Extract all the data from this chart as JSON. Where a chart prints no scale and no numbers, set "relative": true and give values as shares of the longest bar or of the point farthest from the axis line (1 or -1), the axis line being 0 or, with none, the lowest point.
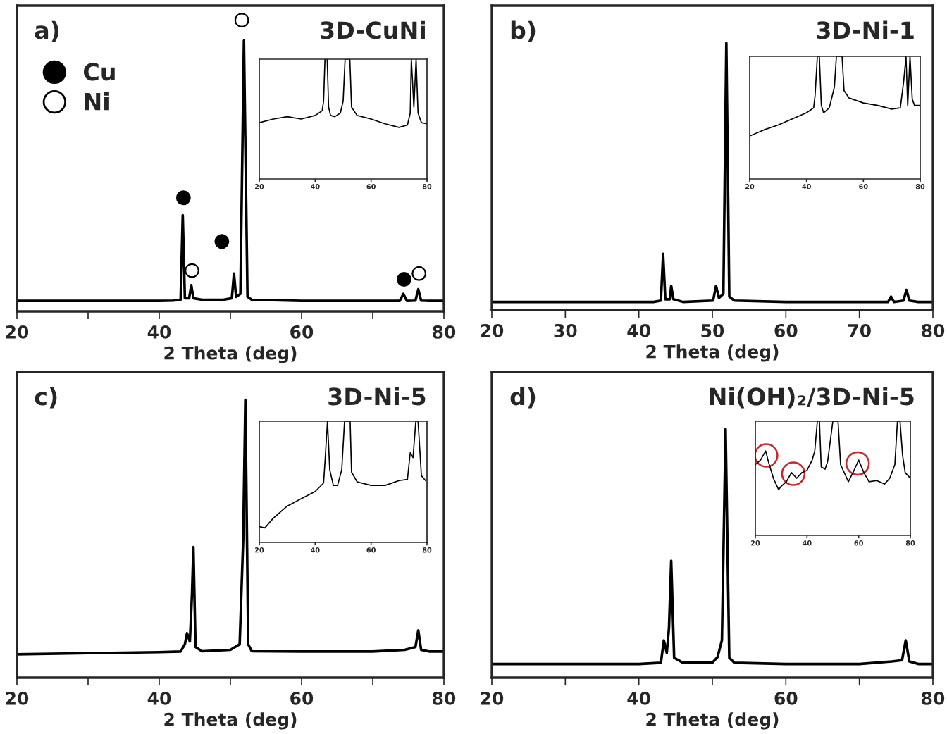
{
  "chart_data": [
    {
      "type": "line",
      "title": "a)",
      "subtitle": "3D-CuNi",
      "xlabel": "2 Theta (deg)",
      "relative": true,
      "tick_labels": "x",
      "legend": "top left",
      "xlim": [
        20,
        80
      ],
      "xticks": [
        20,
        {
          "value": 30,
          "label": null
        },
        40,
        {
          "value": 50,
          "label": null
        },
        60,
        {
          "value": 70,
          "label": null
        },
        80
      ],
      "series": [
        {
          "type": "line",
          "color": "#000000",
          "x": [
            20,
            25,
            30,
            35,
            40,
            42,
            43.0,
            43.3,
            43.6,
            44.2,
            44.5,
            44.8,
            46,
            49,
            50.2,
            50.5,
            50.8,
            51.4,
            51.9,
            52.4,
            53,
            60,
            70,
            73.8,
            74.3,
            74.8,
            76.0,
            76.4,
            76.8,
            78,
            80
          ],
          "values": [
            0.036,
            0.036,
            0.036,
            0.036,
            0.036,
            0.037,
            0.04,
            0.33,
            0.045,
            0.045,
            0.09,
            0.045,
            0.04,
            0.04,
            0.045,
            0.13,
            0.05,
            0.06,
            0.93,
            0.05,
            0.04,
            0.036,
            0.036,
            0.036,
            0.06,
            0.036,
            0.037,
            0.076,
            0.037,
            0.036,
            0.036
          ]
        },
        {
          "type": "scatter",
          "name": "Cu",
          "color": "#000000",
          "marker": "circle",
          "x": [
            43.4,
            48.8,
            74.4
          ],
          "values": [
            0.39,
            0.24,
            0.11
          ]
        },
        {
          "type": "scatter",
          "name": "Ni",
          "color": "#ffffff",
          "marker": "circle",
          "x": [
            44.6,
            51.6,
            76.5
          ],
          "values": [
            0.14,
            1,
            0.13
          ]
        }
      ]
    },
    {
      "type": "line",
      "relative": true,
      "tick_labels": "x",
      "xlim": [
        20,
        80
      ],
      "xticks": [
        20,
        40,
        60,
        80
      ],
      "series": [
        {
          "type": "line",
          "color": "#000000",
          "x": [
            20,
            25,
            30,
            35,
            40,
            42.5,
            43,
            43.5,
            44.3,
            44.8,
            45.5,
            47,
            49,
            50,
            50.7,
            51.8,
            52.4,
            53,
            55,
            60,
            65,
            70,
            73,
            74,
            74.4,
            75.3,
            76.1,
            76.8,
            78,
            80
          ],
          "values": [
            0.47,
            0.5,
            0.52,
            0.5,
            0.53,
            0.57,
            0.65,
            1,
            1,
            0.6,
            0.53,
            0.52,
            0.55,
            0.65,
            1,
            1,
            1,
            0.6,
            0.53,
            0.5,
            0.46,
            0.43,
            0.45,
            0.55,
            1,
            0.6,
            1,
            0.55,
            0.47,
            0.46
          ]
        }
      ]
    },
    {
      "type": "line",
      "title": "b)",
      "subtitle": "3D-Ni-1",
      "xlabel": "2 Theta (deg)",
      "relative": true,
      "tick_labels": "x",
      "xlim": [
        20,
        80
      ],
      "xticks": [
        20,
        30,
        40,
        50,
        60,
        70,
        80
      ],
      "series": [
        {
          "type": "line",
          "color": "#000000",
          "x": [
            20,
            30,
            40,
            42,
            43.0,
            43.3,
            43.6,
            44.2,
            44.4,
            44.7,
            46,
            50.1,
            50.5,
            50.9,
            51.5,
            51.9,
            52.3,
            53,
            60,
            70,
            73.9,
            74.3,
            74.7,
            76.0,
            76.4,
            76.8,
            78,
            80
          ],
          "values": [
            0.03,
            0.03,
            0.03,
            0.03,
            0.035,
            0.21,
            0.04,
            0.04,
            0.09,
            0.04,
            0.03,
            0.035,
            0.09,
            0.045,
            0.06,
            1,
            0.05,
            0.035,
            0.03,
            0.03,
            0.03,
            0.05,
            0.03,
            0.035,
            0.075,
            0.035,
            0.03,
            0.03
          ]
        }
      ]
    },
    {
      "type": "line",
      "relative": true,
      "tick_labels": "x",
      "xlim": [
        20,
        80
      ],
      "xticks": [
        20,
        40,
        60,
        80
      ],
      "series": [
        {
          "type": "line",
          "color": "#000000",
          "x": [
            20,
            25,
            30,
            35,
            40,
            42.5,
            43,
            43.8,
            44.5,
            45.2,
            46,
            48,
            49.8,
            50.5,
            51.2,
            52.5,
            53.2,
            55,
            60,
            65,
            70,
            73,
            74.2,
            75,
            75.6,
            76.4,
            77.2,
            78,
            80
          ],
          "values": [
            0.35,
            0.4,
            0.44,
            0.49,
            0.54,
            0.58,
            0.68,
            1,
            1,
            0.6,
            0.54,
            0.58,
            0.75,
            1,
            1,
            1,
            0.72,
            0.66,
            0.62,
            0.6,
            0.57,
            0.58,
            0.8,
            1,
            0.6,
            1,
            0.65,
            0.6,
            0.6
          ]
        }
      ]
    },
    {
      "type": "line",
      "title": "c)",
      "subtitle": "3D-Ni-5",
      "xlabel": "2 Theta (deg)",
      "relative": true,
      "tick_labels": "x",
      "xlim": [
        20,
        80
      ],
      "xticks": [
        20,
        {
          "value": 30,
          "label": null
        },
        40,
        {
          "value": 50,
          "label": null
        },
        60,
        {
          "value": 70,
          "label": null
        },
        80
      ],
      "series": [
        {
          "type": "line",
          "color": "#000000",
          "x": [
            20,
            30,
            40,
            43,
            43.6,
            43.9,
            44.3,
            44.6,
            44.8,
            45.1,
            46,
            50,
            51.3,
            51.8,
            52.1,
            52.5,
            53,
            60,
            70,
            74.5,
            76.0,
            76.4,
            76.8,
            78,
            80
          ],
          "values": [
            0.084,
            0.088,
            0.092,
            0.094,
            0.12,
            0.16,
            0.13,
            0.3,
            0.47,
            0.11,
            0.095,
            0.1,
            0.12,
            0.5,
            1,
            0.12,
            0.095,
            0.094,
            0.094,
            0.1,
            0.11,
            0.17,
            0.1,
            0.094,
            0.094
          ]
        }
      ]
    },
    {
      "type": "line",
      "relative": true,
      "tick_labels": "x",
      "xlim": [
        20,
        80
      ],
      "xticks": [
        20,
        40,
        60,
        80
      ],
      "series": [
        {
          "type": "line",
          "color": "#000000",
          "x": [
            20,
            22,
            25,
            30,
            35,
            40,
            43,
            43.6,
            44.4,
            45.2,
            46.5,
            48,
            49.5,
            50.5,
            51.5,
            52.5,
            53,
            55,
            60,
            65,
            70,
            73,
            74,
            75,
            76,
            76.8,
            78,
            79.5
          ],
          "values": [
            0.13,
            0.12,
            0.2,
            0.3,
            0.36,
            0.42,
            0.49,
            0.7,
            1,
            0.6,
            0.47,
            0.47,
            0.6,
            1,
            1,
            1,
            0.58,
            0.5,
            0.47,
            0.47,
            0.51,
            0.52,
            0.74,
            0.7,
            1,
            1,
            0.55,
            0.51
          ]
        }
      ]
    },
    {
      "type": "line",
      "title": "d)",
      "subtitle": "Ni(OH)₂/3D-Ni-5",
      "xlabel": "2 Theta (deg)",
      "relative": true,
      "tick_labels": "x",
      "xlim": [
        20,
        80
      ],
      "xticks": [
        20,
        {
          "value": 30,
          "label": null
        },
        40,
        {
          "value": 50,
          "label": null
        },
        60,
        {
          "value": 70,
          "label": null
        },
        80
      ],
      "series": [
        {
          "type": "line",
          "color": "#000000",
          "x": [
            20,
            30,
            40,
            43,
            43.4,
            43.8,
            44.1,
            44.4,
            44.8,
            46,
            50,
            50.7,
            51.3,
            51.8,
            52.3,
            53,
            60,
            70,
            74.4,
            75.8,
            76.3,
            76.8,
            78,
            80
          ],
          "values": [
            0.055,
            0.055,
            0.055,
            0.06,
            0.15,
            0.1,
            0.2,
            0.47,
            0.08,
            0.06,
            0.06,
            0.083,
            0.15,
            1,
            0.08,
            0.06,
            0.055,
            0.055,
            0.065,
            0.07,
            0.15,
            0.065,
            0.055,
            0.055
          ]
        }
      ]
    },
    {
      "type": "line",
      "relative": true,
      "tick_labels": "x",
      "xlim": [
        20,
        80
      ],
      "xticks": [
        20,
        40,
        60,
        80
      ],
      "series": [
        {
          "type": "line",
          "color": "#000000",
          "x": [
            20,
            22,
            24,
            25,
            27,
            29,
            30,
            32,
            34,
            36,
            38,
            40,
            42,
            43,
            44,
            44.8,
            45.5,
            47,
            48,
            50,
            51,
            52,
            53,
            55,
            56,
            58,
            60,
            62,
            64,
            67,
            70,
            72,
            74,
            75,
            76,
            77,
            78,
            80
          ],
          "values": [
            0.62,
            0.66,
            0.74,
            0.65,
            0.5,
            0.4,
            0.43,
            0.47,
            0.55,
            0.5,
            0.55,
            0.57,
            0.66,
            0.74,
            1,
            1,
            0.6,
            0.58,
            0.65,
            1,
            1,
            1,
            0.62,
            0.52,
            0.47,
            0.56,
            0.66,
            0.55,
            0.47,
            0.48,
            0.45,
            0.5,
            0.62,
            1,
            1,
            0.7,
            0.55,
            0.5
          ]
        }
      ]
    }
  ]
}
